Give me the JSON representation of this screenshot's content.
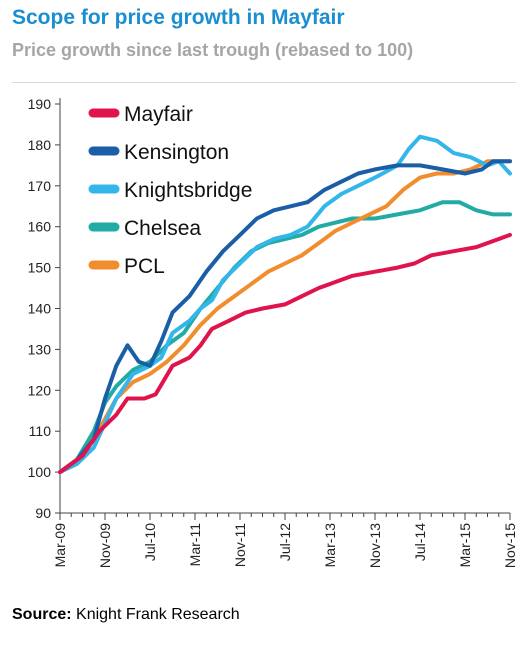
{
  "header": {
    "title": "Scope for price growth in Mayfair",
    "subtitle": "Price growth since last trough (rebased to 100)"
  },
  "footer": {
    "source_label": "Source:",
    "source_text": "Knight Frank Research"
  },
  "chart_data": {
    "type": "line",
    "ylim": [
      90,
      190
    ],
    "yticks": [
      90,
      100,
      110,
      120,
      130,
      140,
      150,
      160,
      170,
      180,
      190
    ],
    "xlim": [
      0,
      80
    ],
    "x_ticks": [
      {
        "label": "Mar-09",
        "x": 0
      },
      {
        "label": "Nov-09",
        "x": 8
      },
      {
        "label": "Jul-10",
        "x": 16
      },
      {
        "label": "Mar-11",
        "x": 24
      },
      {
        "label": "Nov-11",
        "x": 32
      },
      {
        "label": "Jul-12",
        "x": 40
      },
      {
        "label": "Mar-13",
        "x": 48
      },
      {
        "label": "Nov-13",
        "x": 56
      },
      {
        "label": "Jul-14",
        "x": 64
      },
      {
        "label": "Mar-15",
        "x": 72
      },
      {
        "label": "Nov-15",
        "x": 80
      }
    ],
    "legend_position": "top-left",
    "series": [
      {
        "name": "Mayfair",
        "color": "#e0144c",
        "points": [
          [
            0,
            100
          ],
          [
            4,
            104
          ],
          [
            7,
            110
          ],
          [
            10,
            114
          ],
          [
            12,
            118
          ],
          [
            15,
            118
          ],
          [
            17,
            119
          ],
          [
            20,
            126
          ],
          [
            23,
            128
          ],
          [
            25,
            131
          ],
          [
            27,
            135
          ],
          [
            30,
            137
          ],
          [
            33,
            139
          ],
          [
            36,
            140
          ],
          [
            40,
            141
          ],
          [
            43,
            143
          ],
          [
            46,
            145
          ],
          [
            48,
            146
          ],
          [
            52,
            148
          ],
          [
            56,
            149
          ],
          [
            60,
            150
          ],
          [
            63,
            151
          ],
          [
            66,
            153
          ],
          [
            70,
            154
          ],
          [
            74,
            155
          ],
          [
            78,
            157
          ],
          [
            80,
            158
          ]
        ]
      },
      {
        "name": "Kensington",
        "color": "#1b5ea8",
        "points": [
          [
            0,
            100
          ],
          [
            3,
            103
          ],
          [
            6,
            108
          ],
          [
            8,
            118
          ],
          [
            10,
            126
          ],
          [
            12,
            131
          ],
          [
            14,
            127
          ],
          [
            16,
            126
          ],
          [
            18,
            132
          ],
          [
            20,
            139
          ],
          [
            23,
            143
          ],
          [
            26,
            149
          ],
          [
            29,
            154
          ],
          [
            32,
            158
          ],
          [
            35,
            162
          ],
          [
            38,
            164
          ],
          [
            41,
            165
          ],
          [
            44,
            166
          ],
          [
            47,
            169
          ],
          [
            50,
            171
          ],
          [
            53,
            173
          ],
          [
            56,
            174
          ],
          [
            60,
            175
          ],
          [
            64,
            175
          ],
          [
            68,
            174
          ],
          [
            72,
            173
          ],
          [
            75,
            174
          ],
          [
            77,
            176
          ],
          [
            80,
            176
          ]
        ]
      },
      {
        "name": "Knightsbridge",
        "color": "#33b6ea",
        "points": [
          [
            0,
            100
          ],
          [
            3,
            102
          ],
          [
            6,
            106
          ],
          [
            8,
            112
          ],
          [
            10,
            118
          ],
          [
            13,
            124
          ],
          [
            16,
            126
          ],
          [
            18,
            128
          ],
          [
            20,
            134
          ],
          [
            23,
            137
          ],
          [
            25,
            140
          ],
          [
            27,
            142
          ],
          [
            29,
            147
          ],
          [
            32,
            151
          ],
          [
            35,
            155
          ],
          [
            38,
            157
          ],
          [
            41,
            158
          ],
          [
            44,
            160
          ],
          [
            47,
            165
          ],
          [
            50,
            168
          ],
          [
            53,
            170
          ],
          [
            56,
            172
          ],
          [
            60,
            175
          ],
          [
            62,
            179
          ],
          [
            64,
            182
          ],
          [
            67,
            181
          ],
          [
            70,
            178
          ],
          [
            73,
            177
          ],
          [
            76,
            175
          ],
          [
            78,
            176
          ],
          [
            80,
            173
          ]
        ]
      },
      {
        "name": "Chelsea",
        "color": "#22aaa5",
        "points": [
          [
            0,
            100
          ],
          [
            3,
            103
          ],
          [
            6,
            110
          ],
          [
            8,
            117
          ],
          [
            10,
            121
          ],
          [
            13,
            125
          ],
          [
            16,
            127
          ],
          [
            19,
            131
          ],
          [
            22,
            134
          ],
          [
            25,
            140
          ],
          [
            28,
            145
          ],
          [
            31,
            150
          ],
          [
            34,
            154
          ],
          [
            37,
            156
          ],
          [
            40,
            157
          ],
          [
            43,
            158
          ],
          [
            46,
            160
          ],
          [
            49,
            161
          ],
          [
            52,
            162
          ],
          [
            56,
            162
          ],
          [
            60,
            163
          ],
          [
            64,
            164
          ],
          [
            68,
            166
          ],
          [
            71,
            166
          ],
          [
            74,
            164
          ],
          [
            77,
            163
          ],
          [
            80,
            163
          ]
        ]
      },
      {
        "name": "PCL",
        "color": "#f28d2d",
        "points": [
          [
            0,
            100
          ],
          [
            3,
            103
          ],
          [
            6,
            108
          ],
          [
            8,
            113
          ],
          [
            10,
            118
          ],
          [
            13,
            122
          ],
          [
            16,
            124
          ],
          [
            19,
            127
          ],
          [
            22,
            131
          ],
          [
            25,
            136
          ],
          [
            28,
            140
          ],
          [
            31,
            143
          ],
          [
            34,
            146
          ],
          [
            37,
            149
          ],
          [
            40,
            151
          ],
          [
            43,
            153
          ],
          [
            46,
            156
          ],
          [
            49,
            159
          ],
          [
            52,
            161
          ],
          [
            55,
            163
          ],
          [
            58,
            165
          ],
          [
            61,
            169
          ],
          [
            64,
            172
          ],
          [
            67,
            173
          ],
          [
            70,
            173
          ],
          [
            73,
            174
          ],
          [
            76,
            176
          ],
          [
            78,
            176
          ],
          [
            80,
            176
          ]
        ]
      }
    ]
  }
}
